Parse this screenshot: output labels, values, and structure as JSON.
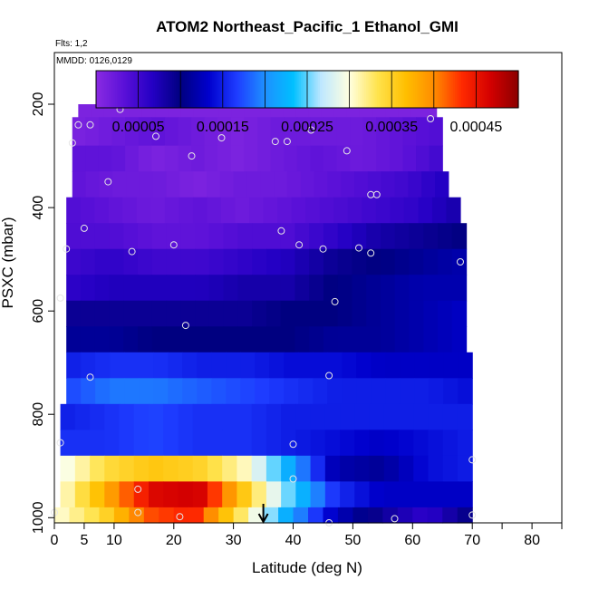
{
  "chart_data": {
    "type": "heatmap",
    "title": "ATOM2 Northeast_Pacific_1 Ethanol_GMI",
    "flights_note": "Flts: 1,2",
    "dates_note": "MMDD: 0126,0129",
    "xlabel": "Latitude (deg N)",
    "ylabel": "PSXC (mbar)",
    "xlim": [
      0,
      85
    ],
    "ylim_inverted": [
      1010,
      100
    ],
    "x_ticks": [
      0,
      5,
      10,
      20,
      30,
      40,
      50,
      60,
      70,
      80
    ],
    "x_minor_ticks": [
      75,
      85
    ],
    "y_ticks": [
      200,
      400,
      600,
      800,
      1000
    ],
    "colorbar": {
      "min": 0.0,
      "max": 0.0005,
      "tick_values": [
        5e-05,
        0.00015,
        0.00025,
        0.00035,
        0.00045
      ],
      "tick_labels": [
        "0.00005",
        "0.00015",
        "0.00025",
        "0.00035",
        "0.00045"
      ],
      "colors": [
        "#8a2be2",
        "#5a10d8",
        "#2400c4",
        "#000080",
        "#0000cd",
        "#1e3cff",
        "#1e90ff",
        "#00bfff",
        "#bfe8ff",
        "#ffffe0",
        "#ffe34d",
        "#ffbf00",
        "#ff8c00",
        "#ff2a00",
        "#d40000",
        "#8b0000"
      ]
    },
    "arrow_latitude": 35,
    "bands": [
      {
        "p_top": 165,
        "p_bot": 200,
        "x_start": 11,
        "x_end": 18,
        "v": [
          1e-05,
          1e-05
        ]
      },
      {
        "p_top": 200,
        "p_bot": 225,
        "x_start": 4,
        "x_end": 64,
        "v": [
          1e-05,
          1e-05,
          1e-05,
          1e-05
        ]
      },
      {
        "p_top": 225,
        "p_bot": 280,
        "x_start": 3,
        "x_end": 65,
        "v": [
          1e-05,
          2e-05,
          3e-05,
          2e-05,
          1e-05,
          2e-05,
          2e-05,
          2e-05,
          3e-05,
          4e-05
        ]
      },
      {
        "p_top": 280,
        "p_bot": 330,
        "x_start": 3,
        "x_end": 65,
        "v": [
          3e-05,
          3e-05,
          1e-05,
          2e-05,
          1e-05,
          2e-05,
          3e-05,
          2e-05,
          3e-05,
          5e-05
        ]
      },
      {
        "p_top": 330,
        "p_bot": 380,
        "x_start": 3,
        "x_end": 66,
        "v": [
          3e-05,
          2e-05,
          2e-05,
          1e-05,
          2e-05,
          2e-05,
          3e-05,
          4e-05,
          5e-05,
          7e-05
        ]
      },
      {
        "p_top": 380,
        "p_bot": 430,
        "x_start": 2,
        "x_end": 68,
        "v": [
          4e-05,
          3e-05,
          2e-05,
          3e-05,
          2e-05,
          3e-05,
          4e-05,
          5e-05,
          6e-05,
          8e-05
        ]
      },
      {
        "p_top": 430,
        "p_bot": 480,
        "x_start": 2,
        "x_end": 69,
        "v": [
          4e-05,
          4e-05,
          3e-05,
          3e-05,
          4e-05,
          4e-05,
          6e-05,
          8e-05,
          9e-05,
          0.0001
        ]
      },
      {
        "p_top": 480,
        "p_bot": 530,
        "x_start": 2,
        "x_end": 69,
        "v": [
          5e-05,
          6e-05,
          5e-05,
          5e-05,
          6e-05,
          7e-05,
          9e-05,
          0.0001,
          0.00011,
          0.00012
        ]
      },
      {
        "p_top": 530,
        "p_bot": 580,
        "x_start": 2,
        "x_end": 69,
        "v": [
          6e-05,
          7e-05,
          7e-05,
          7e-05,
          8e-05,
          8e-05,
          0.0001,
          0.00011,
          0.00012,
          0.00012
        ]
      },
      {
        "p_top": 580,
        "p_bot": 630,
        "x_start": 2,
        "x_end": 69,
        "v": [
          9e-05,
          9e-05,
          9e-05,
          9e-05,
          9e-05,
          0.0001,
          0.0001,
          0.00011,
          0.00012,
          0.00013
        ]
      },
      {
        "p_top": 630,
        "p_bot": 680,
        "x_start": 2,
        "x_end": 69,
        "v": [
          0.00011,
          0.00011,
          0.0001,
          0.0001,
          0.0001,
          0.0001,
          0.00011,
          0.00011,
          0.00012,
          0.00013
        ]
      },
      {
        "p_top": 680,
        "p_bot": 730,
        "x_start": 2,
        "x_end": 70,
        "v": [
          0.00015,
          0.00016,
          0.00016,
          0.00015,
          0.00015,
          0.00014,
          0.00014,
          0.00013,
          0.00013,
          0.00013
        ]
      },
      {
        "p_top": 730,
        "p_bot": 780,
        "x_start": 2,
        "x_end": 70,
        "v": [
          0.00017,
          0.00019,
          0.00019,
          0.00018,
          0.00017,
          0.00016,
          0.00015,
          0.00015,
          0.00015,
          0.00014
        ]
      },
      {
        "p_top": 780,
        "p_bot": 830,
        "x_start": 1,
        "x_end": 70,
        "v": [
          0.00015,
          0.00016,
          0.00017,
          0.00016,
          0.00016,
          0.00015,
          0.00015,
          0.00015,
          0.00015,
          0.00015
        ]
      },
      {
        "p_top": 830,
        "p_bot": 880,
        "x_start": 1,
        "x_end": 70,
        "v": [
          0.00016,
          0.00016,
          0.00017,
          0.00016,
          0.00016,
          0.00015,
          0.00014,
          0.00013,
          0.00014,
          0.00015
        ]
      },
      {
        "p_top": 880,
        "p_bot": 930,
        "x_start": 1,
        "x_end": 70,
        "v": [
          0.00029,
          0.00034,
          0.00036,
          0.00035,
          0.00031,
          0.00022,
          0.00012,
          0.00011,
          0.00014,
          0.00015
        ]
      },
      {
        "p_top": 930,
        "p_bot": 980,
        "x_start": 1,
        "x_end": 70,
        "v": [
          0.0003,
          0.00038,
          0.00046,
          0.00047,
          0.00036,
          0.00025,
          0.00016,
          0.00013,
          0.00013,
          0.00013
        ]
      },
      {
        "p_top": 980,
        "p_bot": 1010,
        "x_start": 0,
        "x_end": 70,
        "v": [
          0.0003,
          0.00034,
          0.00042,
          0.00044,
          0.00033,
          0.00022,
          0.00013,
          9e-05,
          6e-05,
          0.0001
        ]
      }
    ],
    "points": [
      {
        "lat": 11,
        "p": 210
      },
      {
        "lat": 17,
        "p": 200
      },
      {
        "lat": 4,
        "p": 240
      },
      {
        "lat": 6,
        "p": 240
      },
      {
        "lat": 3,
        "p": 275
      },
      {
        "lat": 17,
        "p": 262
      },
      {
        "lat": 23,
        "p": 300
      },
      {
        "lat": 28,
        "p": 265
      },
      {
        "lat": 37,
        "p": 272
      },
      {
        "lat": 39,
        "p": 272
      },
      {
        "lat": 43,
        "p": 250
      },
      {
        "lat": 49,
        "p": 290
      },
      {
        "lat": 63,
        "p": 228
      },
      {
        "lat": 9,
        "p": 350
      },
      {
        "lat": 53,
        "p": 375
      },
      {
        "lat": 54,
        "p": 375
      },
      {
        "lat": 5,
        "p": 440
      },
      {
        "lat": 38,
        "p": 445
      },
      {
        "lat": 2,
        "p": 480
      },
      {
        "lat": 13,
        "p": 485
      },
      {
        "lat": 20,
        "p": 472
      },
      {
        "lat": 41,
        "p": 472
      },
      {
        "lat": 45,
        "p": 480
      },
      {
        "lat": 51,
        "p": 478
      },
      {
        "lat": 53,
        "p": 488
      },
      {
        "lat": 68,
        "p": 505
      },
      {
        "lat": 1,
        "p": 575
      },
      {
        "lat": 47,
        "p": 582
      },
      {
        "lat": 22,
        "p": 628
      },
      {
        "lat": 6,
        "p": 728
      },
      {
        "lat": 46,
        "p": 725
      },
      {
        "lat": 1,
        "p": 855
      },
      {
        "lat": 40,
        "p": 858
      },
      {
        "lat": 70,
        "p": 888
      },
      {
        "lat": 40,
        "p": 925
      },
      {
        "lat": 14,
        "p": 945
      },
      {
        "lat": 0,
        "p": 990
      },
      {
        "lat": 14,
        "p": 990
      },
      {
        "lat": 21,
        "p": 998
      },
      {
        "lat": 46,
        "p": 1010
      },
      {
        "lat": 57,
        "p": 1002
      },
      {
        "lat": 70,
        "p": 995
      }
    ]
  }
}
